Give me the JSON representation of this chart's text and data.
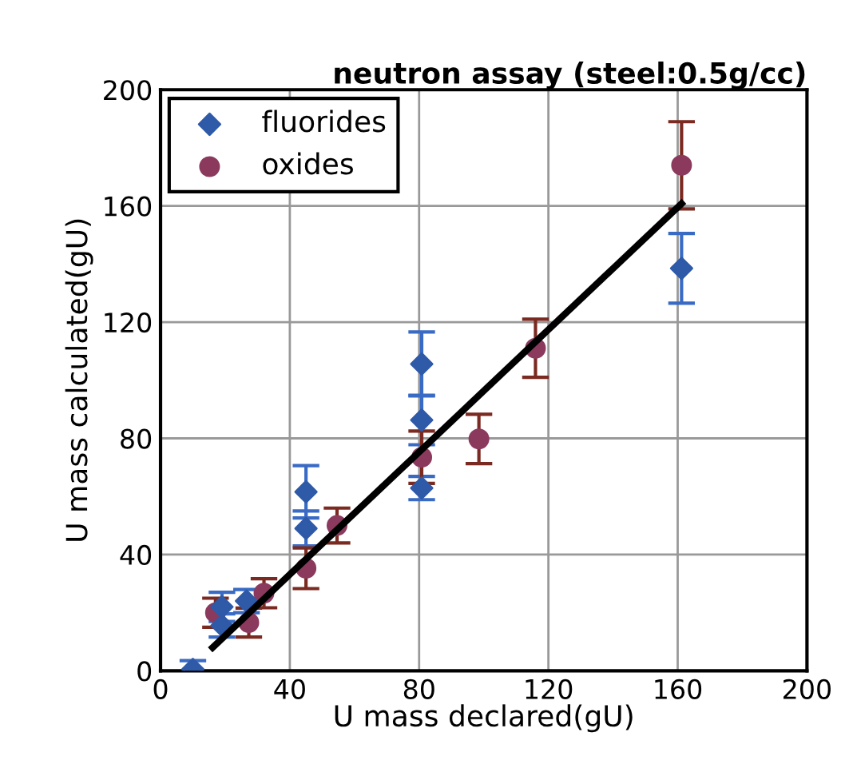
{
  "chart_data": {
    "type": "scatter",
    "title": "neutron assay (steel:0.5g/cc)",
    "xlabel": "U mass declared(gU)",
    "ylabel": "U mass calculated(gU)",
    "xlim": [
      0,
      200
    ],
    "ylim": [
      0,
      200
    ],
    "xticks": [
      0,
      40,
      80,
      120,
      160,
      200
    ],
    "yticks": [
      0,
      40,
      80,
      120,
      160,
      200
    ],
    "grid": true,
    "legend": "top left",
    "series": [
      {
        "name": "fluorides",
        "color": "#2e5aa8",
        "marker": "diamond",
        "x": [
          10,
          19,
          19,
          26.6,
          45,
          45,
          80.8,
          80.8,
          80.8,
          161.2
        ],
        "values": [
          0.5,
          22,
          15.6,
          24,
          61.6,
          49,
          105.6,
          86.3,
          62.9,
          138.5
        ],
        "errors": [
          3,
          5,
          4,
          4,
          9,
          6,
          11,
          8.5,
          4,
          12
        ]
      },
      {
        "name": "oxides",
        "color": "#8b3a5e",
        "marker": "circle",
        "x": [
          17,
          27.3,
          32,
          45,
          54.6,
          80.8,
          98.5,
          116,
          161.2
        ],
        "values": [
          20,
          16.6,
          26.7,
          35.3,
          50,
          73.5,
          79.8,
          111,
          174
        ],
        "errors": [
          5,
          5,
          5,
          7,
          6,
          9,
          8.5,
          10,
          15
        ]
      },
      {
        "type": "line",
        "color": "#000000",
        "marker": "none",
        "x": [
          16.1,
          161.2
        ],
        "values": [
          8,
          160.8
        ]
      }
    ]
  }
}
